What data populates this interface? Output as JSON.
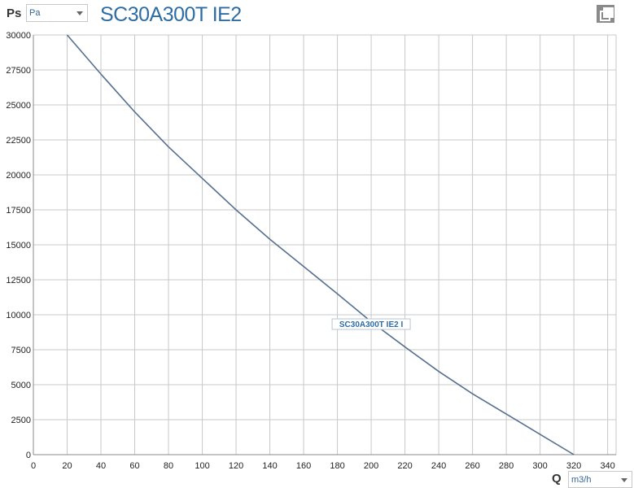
{
  "header": {
    "y_axis_symbol": "Ps",
    "y_unit": "Pa",
    "title": "SC30A300T IE2",
    "x_axis_symbol": "Q",
    "x_unit": "m3/h",
    "copy_icon": "copy-icon"
  },
  "colors": {
    "curve": "#56708f",
    "grid": "#c8c8c8",
    "title": "#2e6da4"
  },
  "chart_data": {
    "type": "line",
    "title": "SC30A300T IE2",
    "xlabel": "Q",
    "ylabel": "Ps",
    "xlim": [
      0,
      345
    ],
    "ylim": [
      0,
      30000
    ],
    "x_ticks": [
      0,
      20,
      40,
      60,
      80,
      100,
      120,
      140,
      160,
      180,
      200,
      220,
      240,
      260,
      280,
      300,
      320,
      340
    ],
    "y_ticks": [
      0,
      2500,
      5000,
      7500,
      10000,
      12500,
      15000,
      17500,
      20000,
      22500,
      25000,
      27500,
      30000
    ],
    "grid": true,
    "series": [
      {
        "name": "SC30A300T IE2 I",
        "x": [
          20,
          40,
          60,
          80,
          100,
          120,
          140,
          160,
          180,
          200,
          220,
          240,
          260,
          280,
          300,
          320
        ],
        "y": [
          30000,
          27200,
          24500,
          22000,
          19750,
          17500,
          15400,
          13450,
          11500,
          9500,
          7700,
          5950,
          4350,
          2900,
          1450,
          0
        ]
      }
    ],
    "annotation": {
      "text": "SC30A300T IE2 I",
      "x": 200,
      "y": 9300
    }
  }
}
